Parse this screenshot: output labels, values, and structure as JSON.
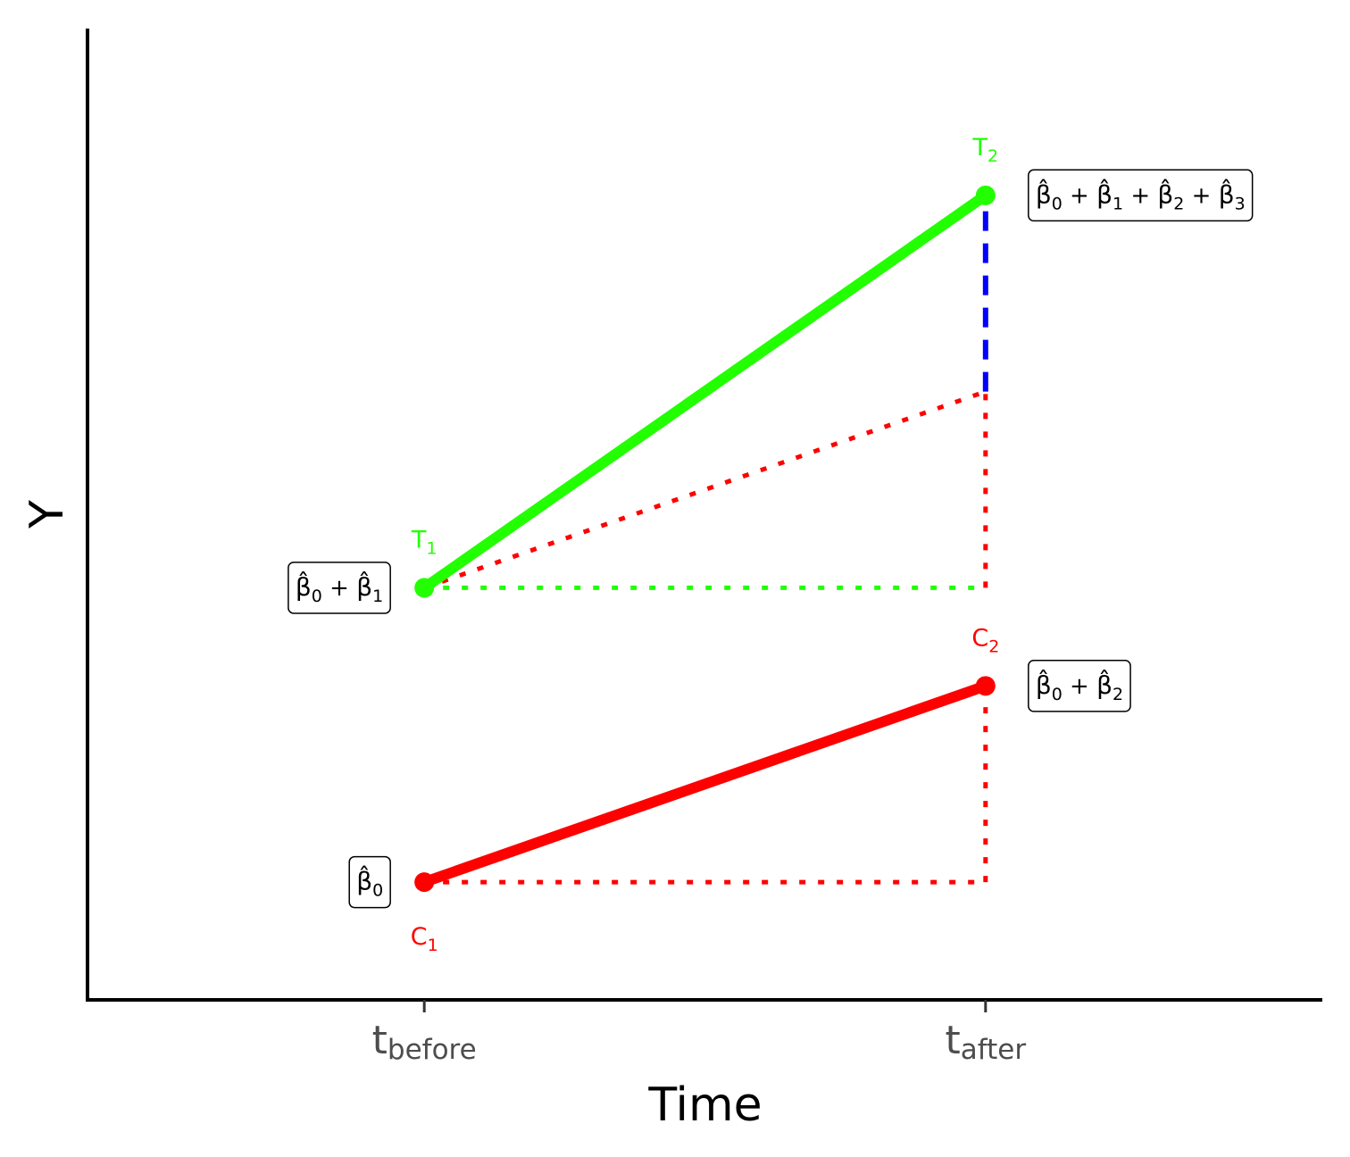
{
  "chart_data": {
    "type": "line",
    "xlabel": "Time",
    "ylabel": "Y",
    "x_ticks": [
      {
        "base": "t",
        "sub": "before"
      },
      {
        "base": "t",
        "sub": "after"
      }
    ],
    "x_range": [
      0.4,
      2.6
    ],
    "y_range": [
      -0.48,
      3.48
    ],
    "grid": false,
    "legend": "none",
    "series": [
      {
        "group": "treatment",
        "color": "#22ff00",
        "points": [
          {
            "x": 1,
            "y": 1.2,
            "label": "T",
            "sub": "1"
          },
          {
            "x": 2,
            "y": 2.8,
            "label": "T",
            "sub": "2"
          }
        ]
      },
      {
        "group": "control",
        "color": "#ff0000",
        "points": [
          {
            "x": 1,
            "y": 0.0,
            "label": "C",
            "sub": "1"
          },
          {
            "x": 2,
            "y": 0.8,
            "label": "C",
            "sub": "2"
          }
        ]
      }
    ],
    "guides": [
      {
        "from": [
          1,
          1.2
        ],
        "to": [
          2,
          1.2
        ],
        "color": "#22ff00",
        "style": "dotted"
      },
      {
        "from": [
          1,
          1.2
        ],
        "to": [
          2,
          2.0
        ],
        "color": "#ff0000",
        "style": "dotted"
      },
      {
        "from": [
          2,
          1.2
        ],
        "to": [
          2,
          2.0
        ],
        "color": "#ff0000",
        "style": "dotted"
      },
      {
        "from": [
          2,
          2.0
        ],
        "to": [
          2,
          2.8
        ],
        "color": "#0000ff",
        "style": "dashed"
      },
      {
        "from": [
          1,
          0.0
        ],
        "to": [
          2,
          0.0
        ],
        "color": "#ff0000",
        "style": "dotted"
      },
      {
        "from": [
          2,
          0.0
        ],
        "to": [
          2,
          0.8
        ],
        "color": "#ff0000",
        "style": "dotted"
      }
    ],
    "annotations": [
      {
        "x": 1,
        "y": 0.0,
        "side": "left",
        "terms": [
          "0"
        ]
      },
      {
        "x": 1,
        "y": 1.2,
        "side": "left",
        "terms": [
          "0",
          "1"
        ]
      },
      {
        "x": 2,
        "y": 0.8,
        "side": "right",
        "terms": [
          "0",
          "2"
        ]
      },
      {
        "x": 2,
        "y": 2.8,
        "side": "right",
        "terms": [
          "0",
          "1",
          "2",
          "3"
        ]
      }
    ]
  }
}
